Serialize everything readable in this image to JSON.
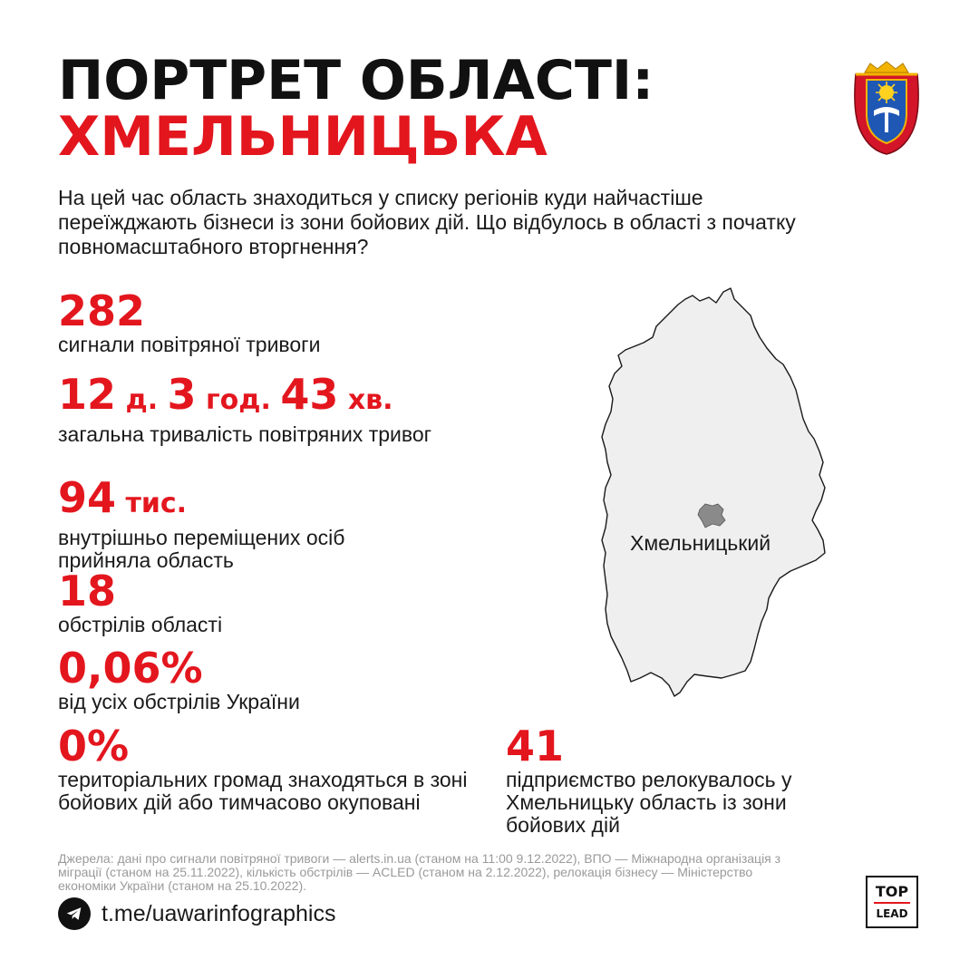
{
  "header": {
    "title_line1": "ПОРТРЕТ ОБЛАСТІ:",
    "title_line2": "ХМЕЛЬНИЦЬКА"
  },
  "intro": "На цей час область знаходиться у списку регіонів куди найчастіше переїжджають бізнеси із зони бойових дій. Що відбулось в області з початку повномасштабного вторгнення?",
  "stats": [
    {
      "value": "282",
      "label": "сигнали повітряної тривоги"
    },
    {
      "value_parts": [
        "12",
        " д. ",
        "3",
        " год. ",
        "43",
        " хв."
      ],
      "label": "загальна тривалість повітряних тривог"
    },
    {
      "value": "94",
      "unit": " тис.",
      "label": "внутрішньо переміщених осіб прийняла область"
    },
    {
      "value": "18",
      "label": "обстрілів області"
    },
    {
      "value": "0,06%",
      "label": "від усіх обстрілів України"
    },
    {
      "value": "0%",
      "label": "територіальних громад знаходяться в зоні бойових дій або тимчасово окуповані"
    },
    {
      "value": "41",
      "label": "підприємство релокувалось у Хмельницьку область із зони бойових дій"
    }
  ],
  "map": {
    "city_label": "Хмельницький",
    "region_fill": "#efefef",
    "city_fill": "#8a8a8a"
  },
  "sources": "Джерела: дані про сигнали повітряної тривоги — alerts.in.ua (станом на 11:00 9.12.2022), ВПО — Міжнародна організація з міграції (станом на 25.11.2022), кількість обстрілів — ACLED (станом на 2.12.2022), релокація бізнесу — Міністерство економіки України (станом на 25.10.2022).",
  "footer": {
    "telegram_icon": "telegram-icon",
    "link": "t.me/uawarinfographics",
    "logo_top": "TOP",
    "logo_bottom": "LEAD"
  },
  "colors": {
    "accent": "#e3161e",
    "text": "#1a1a1a",
    "muted": "#9a9a9a"
  }
}
